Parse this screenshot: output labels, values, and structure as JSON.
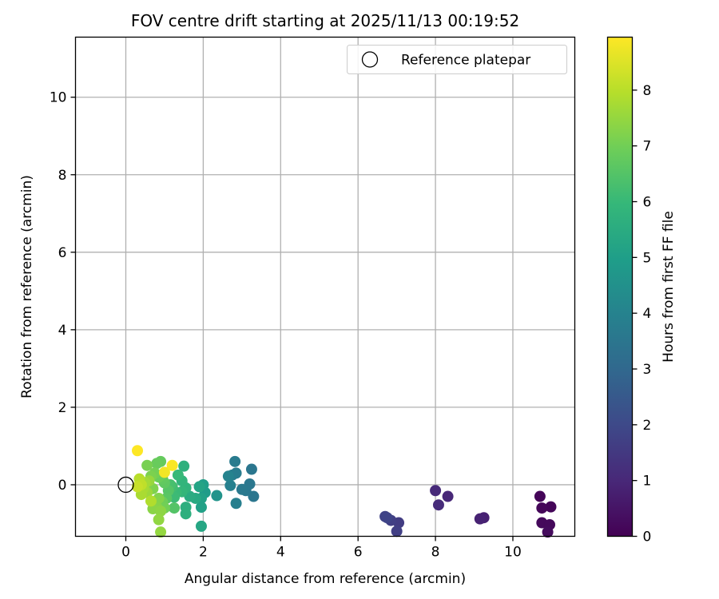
{
  "chart_data": {
    "type": "scatter",
    "title": "FOV centre drift starting at 2025/11/13 00:19:52",
    "xlabel": "Angular distance from reference (arcmin)",
    "ylabel": "Rotation from reference (arcmin)",
    "xlim": [
      -1.3,
      11.6
    ],
    "ylim": [
      -1.33,
      11.55
    ],
    "xticks": [
      0,
      2,
      4,
      6,
      8,
      10
    ],
    "yticks": [
      0,
      2,
      4,
      6,
      8,
      10
    ],
    "grid": true,
    "legend": {
      "location": "top-right",
      "entries": [
        "Reference platepar"
      ]
    },
    "reference_point": {
      "x": 0,
      "y": 0,
      "label": "Reference platepar"
    },
    "colorbar": {
      "label": "Hours from first FF file",
      "colormap": "viridis",
      "range": [
        0,
        8.95
      ],
      "ticks": [
        0,
        1,
        2,
        3,
        4,
        5,
        6,
        7,
        8
      ]
    },
    "points": [
      {
        "x": 10.7,
        "y": -0.3,
        "h": 0.1
      },
      {
        "x": 10.98,
        "y": -0.57,
        "h": 0.1
      },
      {
        "x": 10.75,
        "y": -0.6,
        "h": 0.15
      },
      {
        "x": 10.75,
        "y": -0.98,
        "h": 0.2
      },
      {
        "x": 10.95,
        "y": -1.03,
        "h": 0.2
      },
      {
        "x": 10.9,
        "y": -1.22,
        "h": 0.25
      },
      {
        "x": 9.25,
        "y": -0.85,
        "h": 0.8
      },
      {
        "x": 9.15,
        "y": -0.88,
        "h": 0.85
      },
      {
        "x": 8.32,
        "y": -0.3,
        "h": 1.0
      },
      {
        "x": 8.0,
        "y": -0.15,
        "h": 1.05
      },
      {
        "x": 8.08,
        "y": -0.52,
        "h": 1.1
      },
      {
        "x": 7.05,
        "y": -0.98,
        "h": 1.6
      },
      {
        "x": 6.85,
        "y": -0.92,
        "h": 1.7
      },
      {
        "x": 7.0,
        "y": -1.2,
        "h": 1.7
      },
      {
        "x": 6.7,
        "y": -0.82,
        "h": 1.8
      },
      {
        "x": 6.75,
        "y": -0.85,
        "h": 1.85
      },
      {
        "x": 3.25,
        "y": 0.4,
        "h": 3.5
      },
      {
        "x": 3.3,
        "y": -0.3,
        "h": 3.5
      },
      {
        "x": 3.2,
        "y": 0.02,
        "h": 3.55
      },
      {
        "x": 3.1,
        "y": -0.15,
        "h": 3.6
      },
      {
        "x": 3.0,
        "y": -0.12,
        "h": 3.65
      },
      {
        "x": 2.82,
        "y": 0.6,
        "h": 3.7
      },
      {
        "x": 2.85,
        "y": 0.3,
        "h": 3.75
      },
      {
        "x": 2.75,
        "y": 0.25,
        "h": 3.8
      },
      {
        "x": 2.85,
        "y": -0.48,
        "h": 3.85
      },
      {
        "x": 2.7,
        "y": -0.02,
        "h": 3.9
      },
      {
        "x": 2.65,
        "y": 0.22,
        "h": 4.0
      },
      {
        "x": 2.35,
        "y": -0.28,
        "h": 4.6
      },
      {
        "x": 2.05,
        "y": -0.2,
        "h": 4.9
      },
      {
        "x": 2.0,
        "y": 0.0,
        "h": 5.0
      },
      {
        "x": 1.95,
        "y": -0.35,
        "h": 5.1
      },
      {
        "x": 1.95,
        "y": -0.58,
        "h": 5.1
      },
      {
        "x": 1.9,
        "y": -0.05,
        "h": 5.2
      },
      {
        "x": 1.95,
        "y": -1.07,
        "h": 5.3
      },
      {
        "x": 1.8,
        "y": -0.35,
        "h": 5.4
      },
      {
        "x": 1.65,
        "y": -0.3,
        "h": 5.5
      },
      {
        "x": 1.55,
        "y": -0.58,
        "h": 5.6
      },
      {
        "x": 1.55,
        "y": -0.75,
        "h": 5.65
      },
      {
        "x": 1.5,
        "y": 0.48,
        "h": 5.7
      },
      {
        "x": 1.55,
        "y": -0.08,
        "h": 5.8
      },
      {
        "x": 1.45,
        "y": 0.1,
        "h": 5.85
      },
      {
        "x": 1.45,
        "y": -0.18,
        "h": 5.9
      },
      {
        "x": 1.35,
        "y": 0.25,
        "h": 6.0
      },
      {
        "x": 1.3,
        "y": -0.2,
        "h": 6.05
      },
      {
        "x": 1.25,
        "y": -0.32,
        "h": 6.1
      },
      {
        "x": 1.2,
        "y": -0.05,
        "h": 6.2
      },
      {
        "x": 1.15,
        "y": 0.0,
        "h": 6.3
      },
      {
        "x": 1.25,
        "y": -0.6,
        "h": 6.5
      },
      {
        "x": 1.1,
        "y": -0.15,
        "h": 6.55
      },
      {
        "x": 1.05,
        "y": -0.35,
        "h": 6.6
      },
      {
        "x": 1.0,
        "y": 0.05,
        "h": 6.7
      },
      {
        "x": 0.95,
        "y": 0.15,
        "h": 6.75
      },
      {
        "x": 0.9,
        "y": 0.6,
        "h": 6.8
      },
      {
        "x": 0.8,
        "y": 0.55,
        "h": 6.85
      },
      {
        "x": 0.85,
        "y": 0.2,
        "h": 6.9
      },
      {
        "x": 0.95,
        "y": -0.45,
        "h": 6.95
      },
      {
        "x": 1.0,
        "y": -0.6,
        "h": 7.0
      },
      {
        "x": 0.75,
        "y": 0.3,
        "h": 7.05
      },
      {
        "x": 0.55,
        "y": 0.5,
        "h": 7.1
      },
      {
        "x": 0.65,
        "y": 0.22,
        "h": 7.15
      },
      {
        "x": 0.7,
        "y": -0.1,
        "h": 7.2
      },
      {
        "x": 0.85,
        "y": -0.35,
        "h": 7.25
      },
      {
        "x": 0.8,
        "y": -0.58,
        "h": 7.3
      },
      {
        "x": 0.7,
        "y": -0.62,
        "h": 7.35
      },
      {
        "x": 0.9,
        "y": -0.68,
        "h": 7.4
      },
      {
        "x": 0.85,
        "y": -0.9,
        "h": 7.45
      },
      {
        "x": 0.9,
        "y": -1.22,
        "h": 7.5
      },
      {
        "x": 0.6,
        "y": 0.1,
        "h": 7.55
      },
      {
        "x": 0.55,
        "y": -0.2,
        "h": 7.6
      },
      {
        "x": 0.5,
        "y": 0.05,
        "h": 7.7
      },
      {
        "x": 0.45,
        "y": -0.1,
        "h": 7.75
      },
      {
        "x": 0.4,
        "y": -0.25,
        "h": 7.8
      },
      {
        "x": 0.65,
        "y": -0.42,
        "h": 7.9
      },
      {
        "x": 0.35,
        "y": 0.15,
        "h": 8.0
      },
      {
        "x": 0.4,
        "y": 0.0,
        "h": 8.1
      },
      {
        "x": 0.3,
        "y": -0.05,
        "h": 8.2
      },
      {
        "x": 1.0,
        "y": 0.32,
        "h": 8.8
      },
      {
        "x": 1.2,
        "y": 0.5,
        "h": 8.9
      },
      {
        "x": 0.3,
        "y": 0.88,
        "h": 8.95
      }
    ]
  }
}
